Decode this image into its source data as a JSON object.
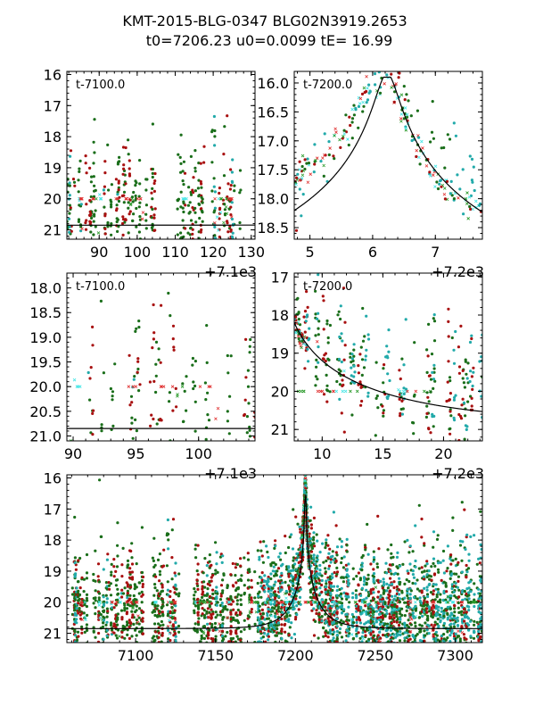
{
  "figure": {
    "title_line1": "KMT-2015-BLG-0347 BLG02N3919.2653",
    "title_line2": "t0=7206.23 u0=0.0099 tE=  16.99"
  },
  "model": {
    "t0": 7206.23,
    "u0": 0.0099,
    "tE": 16.99,
    "baseline_mag": 20.85,
    "peak_mag": 15.9
  },
  "colors": {
    "green": "#1a6e1a",
    "red": "#a81010",
    "teal": "#22aaaa",
    "cyan_cross": "#44e6e6",
    "red_cross": "#e03030",
    "green_cross": "#2a9a2a",
    "model_line": "#000000"
  },
  "chart_data": [
    {
      "type": "scatter",
      "panel": "top-left",
      "label": "t-7100.0",
      "offset_label": "+7.1e3",
      "xlim": [
        7081.5,
        7131
      ],
      "ylim": [
        21.3,
        15.9
      ],
      "xticks": [
        7090,
        7100,
        7110,
        7120,
        7130
      ],
      "xtick_labels": [
        "90",
        "100",
        "110",
        "120",
        "130"
      ],
      "yticks": [
        16,
        17,
        18,
        19,
        20,
        21
      ],
      "ytick_labels": [
        "16",
        "17",
        "18",
        "19",
        "20",
        "21"
      ]
    },
    {
      "type": "scatter",
      "panel": "top-right",
      "label": "t-7200.0",
      "offset_label": "+7.2e3",
      "xlim": [
        7204.75,
        7207.75
      ],
      "ylim": [
        18.7,
        15.8
      ],
      "xticks": [
        7205,
        7206,
        7207
      ],
      "xtick_labels": [
        "5",
        "6",
        "7"
      ],
      "yticks": [
        16.0,
        16.5,
        17.0,
        17.5,
        18.0,
        18.5
      ],
      "ytick_labels": [
        "16.0",
        "16.5",
        "17.0",
        "17.5",
        "18.0",
        "18.5"
      ]
    },
    {
      "type": "scatter",
      "panel": "middle-left",
      "label": "t-7100.0",
      "offset_label": "+7.1e3",
      "xlim": [
        7089.5,
        7104.5
      ],
      "ylim": [
        21.1,
        17.7
      ],
      "xticks": [
        7090,
        7095,
        7100
      ],
      "xtick_labels": [
        "90",
        "95",
        "100"
      ],
      "yticks": [
        18.0,
        18.5,
        19.0,
        19.5,
        20.0,
        20.5,
        21.0
      ],
      "ytick_labels": [
        "18.0",
        "18.5",
        "19.0",
        "19.5",
        "20.0",
        "20.5",
        "21.0"
      ]
    },
    {
      "type": "scatter",
      "panel": "middle-right",
      "label": "t-7200.0",
      "offset_label": "+7.2e3",
      "xlim": [
        7207.7,
        7223.2
      ],
      "ylim": [
        21.3,
        16.9
      ],
      "xticks": [
        7210,
        7215,
        7220
      ],
      "xtick_labels": [
        "10",
        "15",
        "20"
      ],
      "yticks": [
        17,
        18,
        19,
        20,
        21
      ],
      "ytick_labels": [
        "17",
        "18",
        "19",
        "20",
        "21"
      ]
    },
    {
      "type": "scatter",
      "panel": "bottom",
      "label": "",
      "offset_label": "",
      "xlim": [
        7057,
        7317
      ],
      "ylim": [
        21.3,
        15.9
      ],
      "xticks": [
        7100,
        7150,
        7200,
        7250,
        7300
      ],
      "xtick_labels": [
        "7100",
        "7150",
        "7200",
        "7250",
        "7300"
      ],
      "yticks": [
        16,
        17,
        18,
        19,
        20,
        21
      ],
      "ytick_labels": [
        "16",
        "17",
        "18",
        "19",
        "20",
        "21"
      ]
    }
  ],
  "series": [
    {
      "name": "observatory-green-dots",
      "marker": "dot",
      "color_key": "green"
    },
    {
      "name": "observatory-red-dots",
      "marker": "dot",
      "color_key": "red"
    },
    {
      "name": "observatory-teal-dots",
      "marker": "dot",
      "color_key": "teal"
    },
    {
      "name": "cyan-crosses",
      "marker": "cross",
      "color_key": "cyan_cross"
    },
    {
      "name": "red-crosses",
      "marker": "cross",
      "color_key": "red_cross"
    },
    {
      "name": "green-crosses",
      "marker": "cross",
      "color_key": "green_cross"
    }
  ]
}
